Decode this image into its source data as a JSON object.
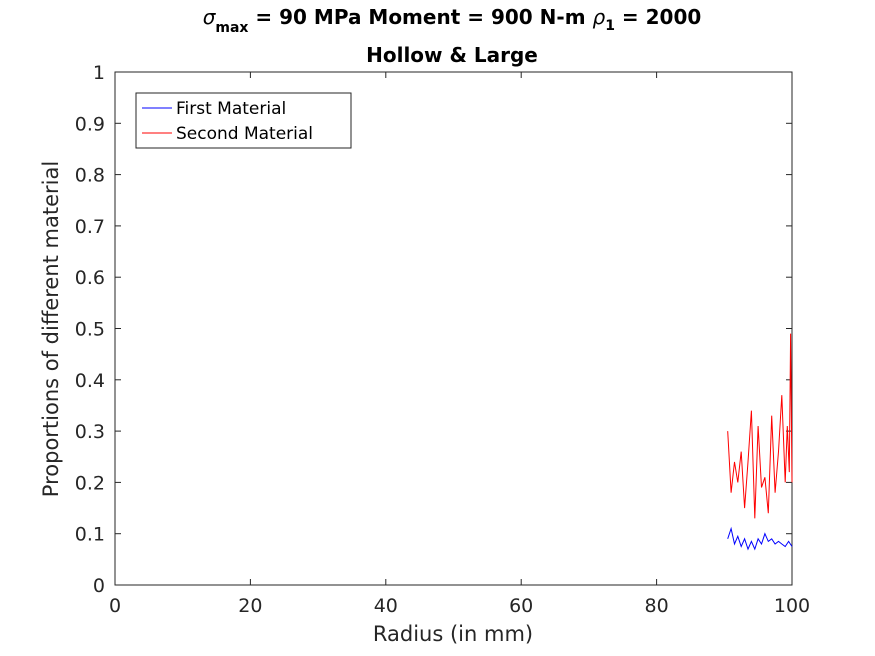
{
  "chart_data": {
    "type": "line",
    "title": {
      "line1": {
        "sigma": "σ",
        "sigma_sub": "max",
        "middle": " = 90 MPa Moment = 900 N-m  ",
        "rho": "ρ",
        "rho_sub": "1",
        "end": " = 2000"
      },
      "line2": "Hollow & Large"
    },
    "xlabel": "Radius (in mm)",
    "ylabel": "Proportions of different material",
    "xlim": [
      0,
      100
    ],
    "ylim": [
      0,
      1
    ],
    "xticks": [
      0,
      20,
      40,
      60,
      80,
      100
    ],
    "xtick_labels": [
      "0",
      "20",
      "40",
      "60",
      "80",
      "100"
    ],
    "yticks": [
      0,
      0.1,
      0.2,
      0.3,
      0.4,
      0.5,
      0.6,
      0.7,
      0.8,
      0.9,
      1
    ],
    "ytick_labels": [
      "0",
      "0.1",
      "0.2",
      "0.3",
      "0.4",
      "0.5",
      "0.6",
      "0.7",
      "0.8",
      "0.9",
      "1"
    ],
    "grid": false,
    "legend_position": "top-left",
    "series": [
      {
        "name": "First Material",
        "color": "#0000ff",
        "x": [
          90.5,
          91.0,
          91.5,
          92.0,
          92.5,
          93.0,
          93.5,
          94.0,
          94.5,
          95.0,
          95.5,
          96.0,
          96.5,
          97.0,
          97.5,
          98.0,
          98.5,
          99.0,
          99.5,
          100.0
        ],
        "y": [
          0.09,
          0.11,
          0.08,
          0.095,
          0.075,
          0.09,
          0.07,
          0.085,
          0.07,
          0.09,
          0.08,
          0.1,
          0.085,
          0.09,
          0.08,
          0.085,
          0.08,
          0.075,
          0.085,
          0.075
        ]
      },
      {
        "name": "Second Material",
        "color": "#ff0000",
        "x": [
          90.5,
          91.0,
          91.5,
          92.0,
          92.5,
          93.0,
          93.5,
          94.0,
          94.5,
          95.0,
          95.5,
          96.0,
          96.5,
          97.0,
          97.5,
          98.0,
          98.5,
          99.0,
          99.3,
          99.6,
          99.8,
          100.0
        ],
        "y": [
          0.3,
          0.18,
          0.24,
          0.2,
          0.26,
          0.15,
          0.24,
          0.34,
          0.13,
          0.31,
          0.19,
          0.21,
          0.14,
          0.33,
          0.18,
          0.26,
          0.37,
          0.2,
          0.31,
          0.22,
          0.49,
          0.2
        ]
      }
    ]
  }
}
